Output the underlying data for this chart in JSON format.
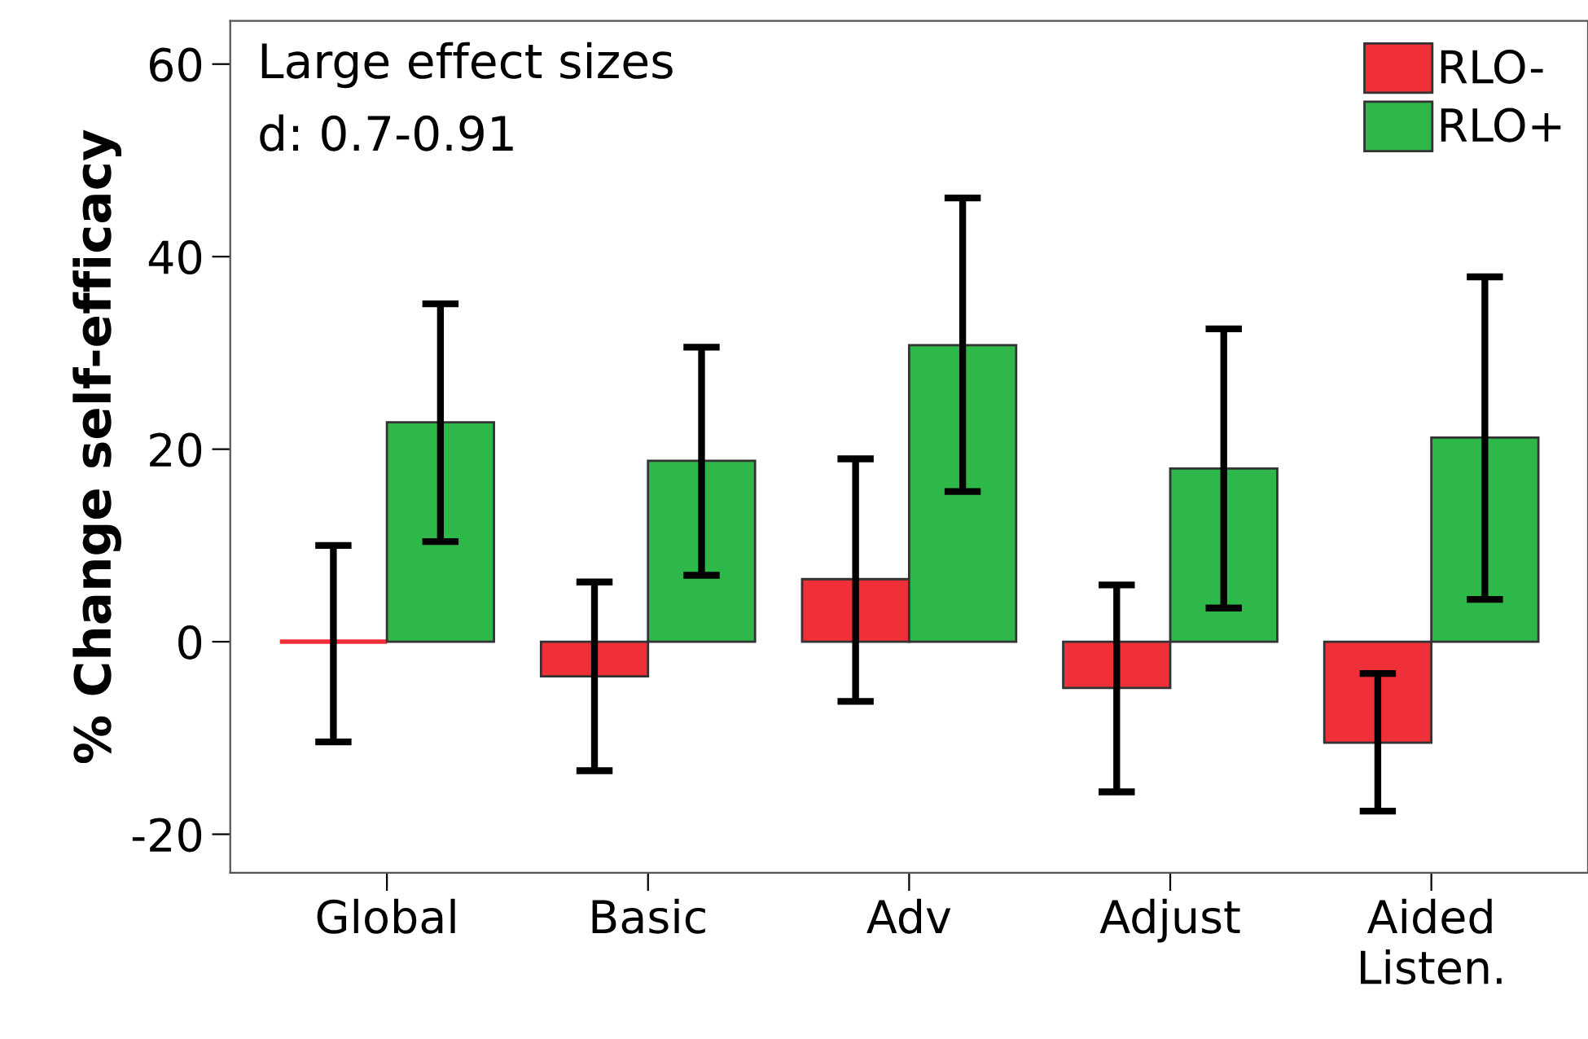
{
  "chart_data": {
    "type": "bar",
    "ylabel": "% Change self-efficacy",
    "categories": [
      "Global",
      "Basic",
      "Adv",
      "Adjust",
      "Aided\nListen."
    ],
    "series": [
      {
        "name": "RLO-",
        "color": "#ef3038",
        "values": [
          0,
          -3.6,
          6.5,
          -4.8,
          -10.5
        ],
        "errors": [
          [
            -10.4,
            10.0
          ],
          [
            -13.4,
            6.2
          ],
          [
            -6.2,
            19.0
          ],
          [
            -15.6,
            5.9
          ],
          [
            -17.6,
            -3.3
          ]
        ]
      },
      {
        "name": "RLO+",
        "color": "#2fb84a",
        "values": [
          22.8,
          18.8,
          30.8,
          18.0,
          21.2
        ],
        "errors": [
          [
            10.4,
            35.1
          ],
          [
            6.9,
            30.6
          ],
          [
            15.6,
            46.1
          ],
          [
            3.5,
            32.5
          ],
          [
            4.4,
            37.9
          ]
        ]
      }
    ],
    "ylim": [
      -24,
      64.5
    ],
    "yticks": [
      -20,
      0,
      20,
      40,
      60
    ],
    "grid": false,
    "legend": "top right",
    "annotations": [
      "Large effect sizes",
      "d: 0.7-0.91"
    ]
  }
}
